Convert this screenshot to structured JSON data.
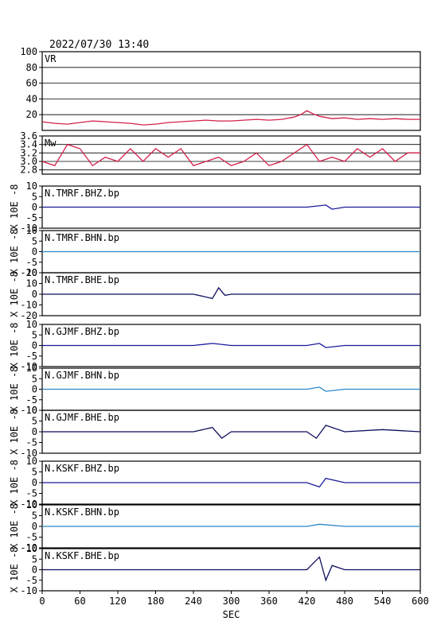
{
  "header": {
    "title": "2022/07/30 13:40"
  },
  "x_axis": {
    "label": "SEC",
    "ticks": [
      "0",
      "60",
      "120",
      "180",
      "240",
      "300",
      "360",
      "420",
      "480",
      "540",
      "600"
    ]
  },
  "chart_data": [
    {
      "type": "line",
      "label": "VR",
      "ylim": [
        0,
        100
      ],
      "yticks": [
        "100",
        "80",
        "60",
        "40",
        "20"
      ],
      "grid": true,
      "color": "#d4204a",
      "x": [
        0,
        20,
        40,
        60,
        80,
        100,
        120,
        140,
        160,
        180,
        200,
        220,
        240,
        260,
        280,
        300,
        320,
        340,
        360,
        380,
        400,
        410,
        420,
        430,
        440,
        460,
        480,
        500,
        520,
        540,
        560,
        580,
        600
      ],
      "values": [
        11,
        9,
        8,
        10,
        12,
        11,
        10,
        9,
        7,
        8,
        10,
        11,
        12,
        13,
        12,
        12,
        13,
        14,
        13,
        14,
        17,
        20,
        25,
        21,
        18,
        15,
        16,
        14,
        15,
        14,
        15,
        14,
        14
      ]
    },
    {
      "type": "line",
      "label": "Mw",
      "ylim": [
        2.7,
        3.6
      ],
      "yticks": [
        "3.6",
        "3.4",
        "3.2",
        "3.0",
        "2.8"
      ],
      "grid": true,
      "color": "#d4204a",
      "x": [
        0,
        20,
        40,
        60,
        80,
        100,
        120,
        140,
        160,
        180,
        200,
        220,
        240,
        260,
        280,
        300,
        320,
        340,
        360,
        380,
        400,
        420,
        440,
        460,
        480,
        500,
        520,
        540,
        560,
        580,
        600
      ],
      "values": [
        3.0,
        2.9,
        3.4,
        3.3,
        2.9,
        3.1,
        3.0,
        3.3,
        3.0,
        3.3,
        3.1,
        3.3,
        2.9,
        3.0,
        3.1,
        2.9,
        3.0,
        3.2,
        2.9,
        3.0,
        3.2,
        3.4,
        3.0,
        3.1,
        3.0,
        3.3,
        3.1,
        3.3,
        3.0,
        3.2,
        3.2
      ]
    },
    {
      "type": "line",
      "label": "N.TMRF.BHZ.bp",
      "ylim": [
        -10,
        10
      ],
      "yticks": [
        "10",
        "5",
        "0",
        "-5",
        "-10"
      ],
      "ylabel": "X 10E -8",
      "color": "#1a1a9c",
      "x": [
        0,
        60,
        120,
        180,
        240,
        300,
        360,
        420,
        450,
        460,
        480,
        540,
        600
      ],
      "values": [
        0,
        0,
        0,
        0,
        0,
        0,
        0,
        0,
        1,
        -1,
        0,
        0,
        0
      ]
    },
    {
      "type": "line",
      "label": "N.TMRF.BHN.bp",
      "ylim": [
        -10,
        10
      ],
      "yticks": [
        "10",
        "5",
        "0",
        "-5",
        "-10"
      ],
      "ylabel": "X 10E -8",
      "color": "#2a86c8",
      "x": [
        0,
        60,
        120,
        180,
        240,
        300,
        360,
        420,
        480,
        540,
        600
      ],
      "values": [
        0,
        0,
        0,
        0,
        0,
        0,
        0,
        0,
        0,
        0,
        0
      ]
    },
    {
      "type": "line",
      "label": "N.TMRF.BHE.bp",
      "ylim": [
        -20,
        20
      ],
      "yticks": [
        "20",
        "10",
        "0",
        "-10",
        "-20"
      ],
      "ylabel": "X 10E -8",
      "color": "#0d0d5c",
      "x": [
        0,
        60,
        120,
        180,
        240,
        270,
        280,
        290,
        300,
        360,
        420,
        480,
        540,
        600
      ],
      "values": [
        0,
        0,
        0,
        0,
        0,
        -4,
        6,
        -1,
        0,
        0,
        0,
        0,
        0,
        0
      ]
    },
    {
      "type": "line",
      "label": "N.GJMF.BHZ.bp",
      "ylim": [
        -10,
        10
      ],
      "yticks": [
        "10",
        "5",
        "0",
        "-5",
        "-10"
      ],
      "ylabel": "X 10E -8",
      "color": "#1a1a9c",
      "x": [
        0,
        60,
        120,
        180,
        240,
        270,
        300,
        360,
        420,
        440,
        450,
        480,
        540,
        600
      ],
      "values": [
        0,
        0,
        0,
        0,
        0,
        1,
        0,
        0,
        0,
        1,
        -1,
        0,
        0,
        0
      ]
    },
    {
      "type": "line",
      "label": "N.GJMF.BHN.bp",
      "ylim": [
        -10,
        10
      ],
      "yticks": [
        "10",
        "5",
        "0",
        "-5",
        "-10"
      ],
      "ylabel": "X 10E -8",
      "color": "#2a86c8",
      "x": [
        0,
        60,
        120,
        180,
        240,
        300,
        360,
        420,
        440,
        450,
        480,
        540,
        600
      ],
      "values": [
        0,
        0,
        0,
        0,
        0,
        0,
        0,
        0,
        1,
        -1,
        0,
        0,
        0
      ]
    },
    {
      "type": "line",
      "label": "N.GJMF.BHE.bp",
      "ylim": [
        -10,
        10
      ],
      "yticks": [
        "10",
        "5",
        "0",
        "-5",
        "-10"
      ],
      "ylabel": "X 10E -8",
      "color": "#0d0d5c",
      "x": [
        0,
        60,
        120,
        180,
        240,
        270,
        285,
        300,
        360,
        420,
        435,
        450,
        480,
        540,
        600
      ],
      "values": [
        0,
        0,
        0,
        0,
        0,
        2,
        -3,
        0,
        0,
        0,
        -3,
        3,
        0,
        1,
        0
      ]
    },
    {
      "type": "line",
      "label": "N.KSKF.BHZ.bp",
      "ylim": [
        -10,
        10
      ],
      "yticks": [
        "10",
        "5",
        "0",
        "-5",
        "-10"
      ],
      "ylabel": "X 10E -8",
      "color": "#1a1a9c",
      "x": [
        0,
        60,
        120,
        180,
        240,
        300,
        360,
        420,
        440,
        450,
        480,
        540,
        600
      ],
      "values": [
        0,
        0,
        0,
        0,
        0,
        0,
        0,
        0,
        -2,
        2,
        0,
        0,
        0
      ]
    },
    {
      "type": "line",
      "label": "N.KSKF.BHN.bp",
      "ylim": [
        -10,
        10
      ],
      "yticks": [
        "10",
        "5",
        "0",
        "-5",
        "-10"
      ],
      "ylabel": "X 10E -8",
      "color": "#2a86c8",
      "x": [
        0,
        60,
        120,
        180,
        240,
        300,
        360,
        420,
        440,
        480,
        540,
        600
      ],
      "values": [
        0,
        0,
        0,
        0,
        0,
        0,
        0,
        0,
        1,
        0,
        0,
        0
      ]
    },
    {
      "type": "line",
      "label": "N.KSKF.BHE.bp",
      "ylim": [
        -10,
        10
      ],
      "yticks": [
        "10",
        "5",
        "0",
        "-5",
        "-10"
      ],
      "ylabel": "X 10E -8",
      "color": "#0d0d5c",
      "x": [
        0,
        60,
        120,
        180,
        240,
        300,
        360,
        420,
        440,
        450,
        460,
        480,
        540,
        600
      ],
      "values": [
        0,
        0,
        0,
        0,
        0,
        0,
        0,
        0,
        6,
        -5,
        2,
        0,
        0,
        0
      ]
    }
  ]
}
